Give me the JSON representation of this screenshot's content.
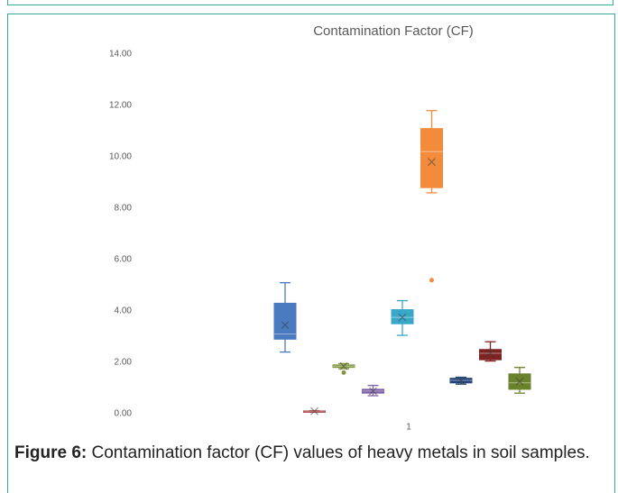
{
  "chart_data": {
    "type": "box",
    "title": "Contamination Factor (CF)",
    "categories": [
      "1"
    ],
    "ylim": [
      0,
      14
    ],
    "yticks": [
      {
        "value": 0,
        "label": "0.00"
      },
      {
        "value": 2,
        "label": "2.00"
      },
      {
        "value": 4,
        "label": "4.00"
      },
      {
        "value": 6,
        "label": "6.00"
      },
      {
        "value": 8,
        "label": "8.00"
      },
      {
        "value": 10,
        "label": "10.00"
      },
      {
        "value": 12,
        "label": "12.00"
      },
      {
        "value": 14,
        "label": "14.00"
      }
    ],
    "series": [
      {
        "color": "#4a7bc0",
        "min": 2.4,
        "q1": 2.9,
        "median": 3.1,
        "q3": 4.3,
        "max": 5.1,
        "mean": 3.45,
        "outliers": []
      },
      {
        "color": "#a23a3a",
        "min": 0.07,
        "q1": 0.09,
        "median": 0.1,
        "q3": 0.11,
        "max": 0.12,
        "mean": 0.1,
        "outliers": []
      },
      {
        "color": "#7f963c",
        "min": 1.75,
        "q1": 1.8,
        "median": 1.85,
        "q3": 1.9,
        "max": 1.95,
        "mean": 1.85,
        "outliers": [
          1.6
        ]
      },
      {
        "color": "#7d5fa6",
        "min": 0.7,
        "q1": 0.8,
        "median": 0.88,
        "q3": 0.95,
        "max": 1.1,
        "mean": 0.88,
        "outliers": []
      },
      {
        "color": "#3aa6c8",
        "min": 3.05,
        "q1": 3.5,
        "median": 3.75,
        "q3": 4.05,
        "max": 4.4,
        "mean": 3.75,
        "outliers": []
      },
      {
        "color": "#f28c3c",
        "min": 8.6,
        "q1": 8.8,
        "median": 10.2,
        "q3": 11.1,
        "max": 11.8,
        "mean": 9.8,
        "outliers": [
          5.2
        ]
      },
      {
        "color": "#23467a",
        "min": 1.15,
        "q1": 1.2,
        "median": 1.3,
        "q3": 1.38,
        "max": 1.42,
        "mean": 1.28,
        "outliers": []
      },
      {
        "color": "#7e2222",
        "min": 2.05,
        "q1": 2.1,
        "median": 2.35,
        "q3": 2.5,
        "max": 2.8,
        "mean": 2.35,
        "outliers": []
      },
      {
        "color": "#6b822c",
        "min": 0.8,
        "q1": 0.95,
        "median": 1.2,
        "q3": 1.55,
        "max": 1.8,
        "mean": 1.25,
        "outliers": []
      }
    ]
  },
  "caption": {
    "label": "Figure 6:",
    "text": "Contamination factor (CF) values of heavy metals in soil samples."
  }
}
